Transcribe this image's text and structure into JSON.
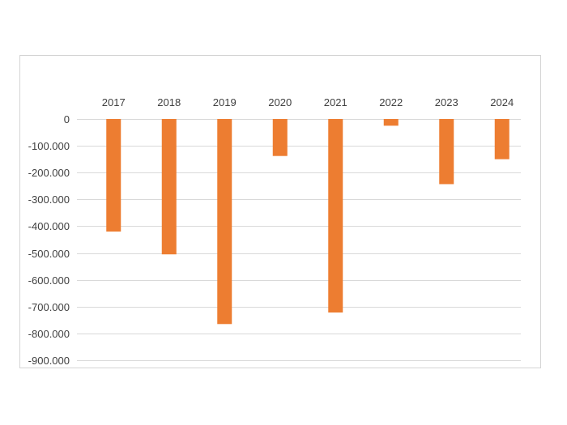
{
  "chart_data": {
    "type": "bar",
    "categories": [
      "2017",
      "2018",
      "2019",
      "2020",
      "2021",
      "2022",
      "2023",
      "2024"
    ],
    "values": [
      -420000,
      -505000,
      -765000,
      -138000,
      -722000,
      -25000,
      -243000,
      -150000
    ],
    "ylim": [
      -900000,
      0
    ],
    "yticks": [
      0,
      -100000,
      -200000,
      -300000,
      -400000,
      -500000,
      -600000,
      -700000,
      -800000,
      -900000
    ],
    "ytick_labels": [
      "0",
      "-100.000",
      "-200.000",
      "-300.000",
      "-400.000",
      "-500.000",
      "-600.000",
      "-700.000",
      "-800.000",
      "-900.000"
    ],
    "grid": true,
    "category_axis_position": "top",
    "bar_color": "#ed7d31",
    "grid_color": "#d9d9d9",
    "text_color": "#404040"
  }
}
